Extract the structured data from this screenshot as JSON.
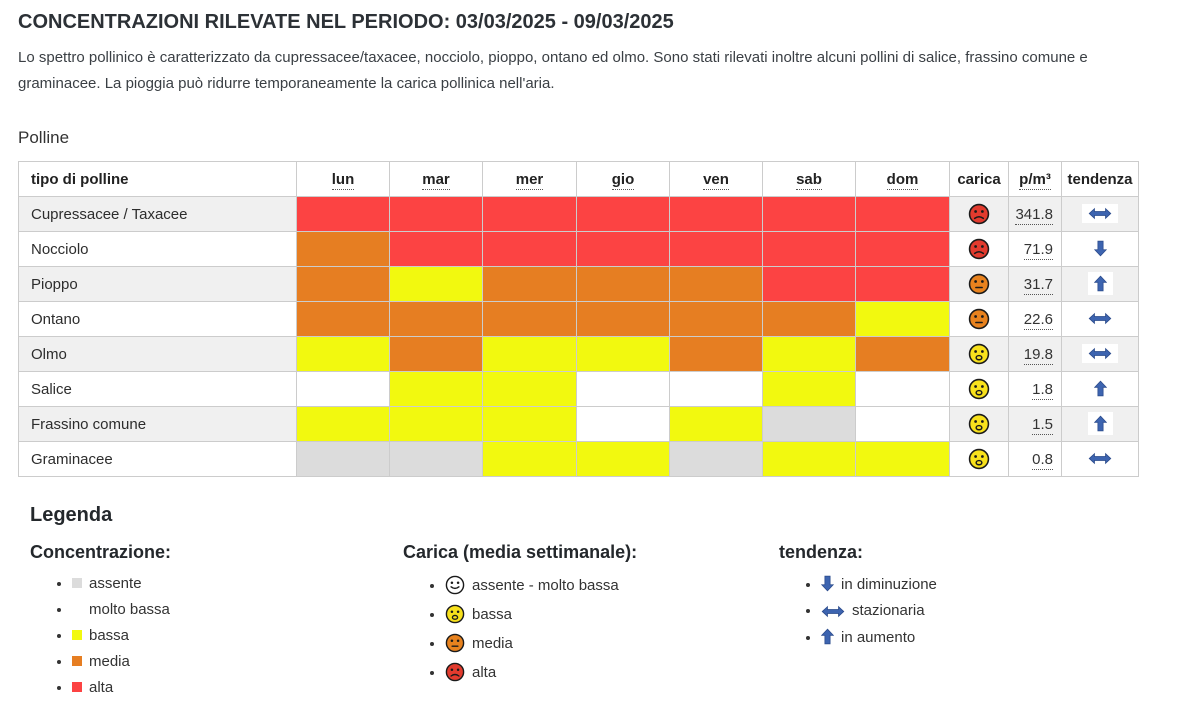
{
  "header": {
    "title": "CONCENTRAZIONI RILEVATE NEL PERIODO: 03/03/2025 - 09/03/2025",
    "subtitle": "Lo spettro pollinico è caratterizzato da cupressacee/taxacee, nocciolo, pioppo, ontano ed olmo. Sono stati rilevati inoltre alcuni pollini di salice, frassino comune e graminacee. La pioggia può ridurre temporaneamente la carica pollinica nell'aria."
  },
  "section_label": "Polline",
  "table": {
    "columns": [
      "tipo di polline",
      "lun",
      "mar",
      "mer",
      "gio",
      "ven",
      "sab",
      "dom",
      "carica",
      "p/m³",
      "tendenza"
    ],
    "rows": [
      {
        "name": "Cupressacee / Taxacee",
        "days": [
          "alta",
          "alta",
          "alta",
          "alta",
          "alta",
          "alta",
          "alta"
        ],
        "carica": "alta",
        "pm3": "341.8",
        "tendenza": "stazionaria"
      },
      {
        "name": "Nocciolo",
        "days": [
          "media",
          "alta",
          "alta",
          "alta",
          "alta",
          "alta",
          "alta"
        ],
        "carica": "alta",
        "pm3": "71.9",
        "tendenza": "in diminuzione"
      },
      {
        "name": "Pioppo",
        "days": [
          "media",
          "bassa",
          "media",
          "media",
          "media",
          "alta",
          "alta"
        ],
        "carica": "media",
        "pm3": "31.7",
        "tendenza": "in aumento"
      },
      {
        "name": "Ontano",
        "days": [
          "media",
          "media",
          "media",
          "media",
          "media",
          "media",
          "bassa"
        ],
        "carica": "media",
        "pm3": "22.6",
        "tendenza": "stazionaria"
      },
      {
        "name": "Olmo",
        "days": [
          "bassa",
          "media",
          "bassa",
          "bassa",
          "media",
          "bassa",
          "media"
        ],
        "carica": "bassa",
        "pm3": "19.8",
        "tendenza": "stazionaria"
      },
      {
        "name": "Salice",
        "days": [
          "molto_bassa",
          "bassa",
          "bassa",
          "molto_bassa",
          "molto_bassa",
          "bassa",
          "molto_bassa"
        ],
        "carica": "bassa",
        "pm3": "1.8",
        "tendenza": "in aumento"
      },
      {
        "name": "Frassino comune",
        "days": [
          "bassa",
          "bassa",
          "bassa",
          "molto_bassa",
          "bassa",
          "assente",
          "molto_bassa"
        ],
        "carica": "bassa",
        "pm3": "1.5",
        "tendenza": "in aumento"
      },
      {
        "name": "Graminacee",
        "days": [
          "assente",
          "assente",
          "bassa",
          "bassa",
          "assente",
          "bassa",
          "bassa"
        ],
        "carica": "bassa",
        "pm3": "0.8",
        "tendenza": "stazionaria"
      }
    ]
  },
  "legend": {
    "title": "Legenda",
    "concentrazione": {
      "heading": "Concentrazione:",
      "items": [
        {
          "level": "assente",
          "label": "assente"
        },
        {
          "level": "molto_bassa",
          "label": "molto bassa"
        },
        {
          "level": "bassa",
          "label": "bassa"
        },
        {
          "level": "media",
          "label": "media"
        },
        {
          "level": "alta",
          "label": "alta"
        }
      ]
    },
    "carica": {
      "heading": "Carica (media settimanale):",
      "items": [
        {
          "face": "assente_molto_bassa",
          "label": "assente - molto bassa"
        },
        {
          "face": "bassa",
          "label": "bassa"
        },
        {
          "face": "media",
          "label": "media"
        },
        {
          "face": "alta",
          "label": "alta"
        }
      ]
    },
    "tendenza": {
      "heading": "tendenza:",
      "items": [
        {
          "trend": "in diminuzione",
          "label": "in diminuzione"
        },
        {
          "trend": "stazionaria",
          "label": "stazionaria"
        },
        {
          "trend": "in aumento",
          "label": "in aumento"
        }
      ]
    }
  },
  "colors": {
    "concentration": {
      "assente": "#dcdcdc",
      "molto_bassa": "#ffffff",
      "bassa": "#f2f90f",
      "media": "#e67e22",
      "alta": "#fc4343"
    },
    "faces": {
      "assente_molto_bassa": "#ffffff",
      "bassa": "#f8e11c",
      "media": "#e8821e",
      "alta": "#e23b2e"
    },
    "trend_arrow": "#3d64b0",
    "row_stripe": "#f0f0f0",
    "table_border": "#cccccc"
  }
}
